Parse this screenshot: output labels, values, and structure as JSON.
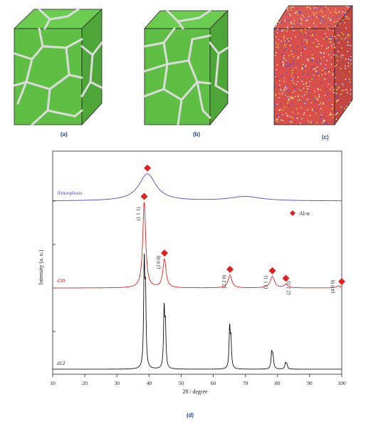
{
  "panels": {
    "a": {
      "label": "(a)",
      "fill": "#5fbf45",
      "boundary": "#d8d8d8"
    },
    "b": {
      "label": "(b)",
      "fill": "#5fbf45",
      "boundary": "#d8d8d8"
    },
    "c": {
      "label": "(c)",
      "fill": "#d9504a",
      "speckle": [
        "#4b4fd0",
        "#f0e050",
        "#e8e8e8"
      ]
    },
    "d": {
      "label": "(d)"
    }
  },
  "chart_data": {
    "type": "line",
    "xlabel": "2θ / degree",
    "ylabel": "Intensity (a. u.)",
    "xlim": [
      10,
      100
    ],
    "xticks": [
      10,
      20,
      30,
      40,
      50,
      60,
      70,
      80,
      90,
      100
    ],
    "legend": {
      "marker": "diamond",
      "label": "Al-α",
      "color": "#e0201e",
      "placement": "top-right"
    },
    "series": [
      {
        "name": "Amorphous",
        "color": "#4a4ad0",
        "baseline": 0,
        "peaks": [
          {
            "x": 39.5,
            "h": 38,
            "w": 3.2
          },
          {
            "x": 70,
            "h": 6,
            "w": 6
          }
        ]
      },
      {
        "name": "d30",
        "color": "#e0201e",
        "baseline": 0,
        "peaks": [
          {
            "x": 38.5,
            "h": 120,
            "w": 0.55
          },
          {
            "x": 44.8,
            "h": 40,
            "w": 0.6
          },
          {
            "x": 65.2,
            "h": 18,
            "w": 0.7
          },
          {
            "x": 78.4,
            "h": 16,
            "w": 0.8
          },
          {
            "x": 82.6,
            "h": 5,
            "w": 0.7
          },
          {
            "x": 99.0,
            "h": 3,
            "w": 0.7
          }
        ]
      },
      {
        "name": "d12",
        "color": "#111111",
        "baseline": 0,
        "peaks": [
          {
            "x": 38.5,
            "h": 140,
            "w": 0.22
          },
          {
            "x": 38.9,
            "h": 95,
            "w": 0.22
          },
          {
            "x": 44.7,
            "h": 80,
            "w": 0.22
          },
          {
            "x": 45.1,
            "h": 55,
            "w": 0.22
          },
          {
            "x": 65.1,
            "h": 55,
            "w": 0.22
          },
          {
            "x": 65.5,
            "h": 38,
            "w": 0.22
          },
          {
            "x": 78.2,
            "h": 22,
            "w": 0.25
          },
          {
            "x": 78.6,
            "h": 16,
            "w": 0.25
          },
          {
            "x": 82.5,
            "h": 8,
            "w": 0.25
          },
          {
            "x": 82.9,
            "h": 6,
            "w": 0.25
          }
        ]
      }
    ],
    "peak_labels": [
      {
        "text": "(1 1 1)",
        "x": 38.5
      },
      {
        "text": "(2 0 0)",
        "x": 44.8
      },
      {
        "text": "(2 2 0)",
        "x": 65.2
      },
      {
        "text": "(3 1 1)",
        "x": 78.4
      },
      {
        "text": "(2 2 2)",
        "x": 82.6
      },
      {
        "text": "(4 0 0)",
        "x": 99.0
      }
    ],
    "markers": [
      {
        "series": "Amorphous",
        "x": 39.5
      },
      {
        "series": "d30",
        "x": 38.5
      },
      {
        "series": "d30",
        "x": 44.8
      },
      {
        "series": "d30",
        "x": 65.2
      },
      {
        "series": "d30",
        "x": 78.4
      },
      {
        "series": "d30",
        "x": 82.6
      },
      {
        "series": "d30",
        "x": 100
      }
    ]
  }
}
